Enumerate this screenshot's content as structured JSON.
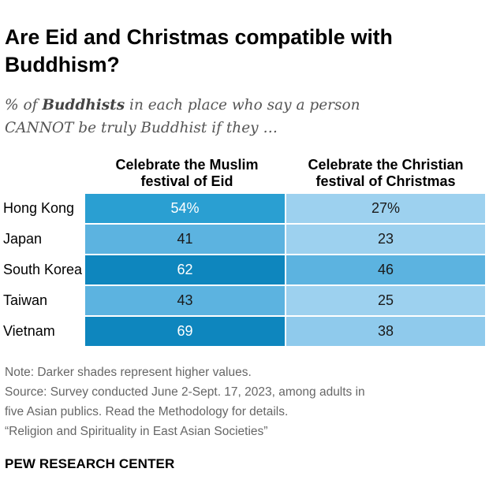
{
  "title_line1": "Are Eid and Christmas compatible with",
  "title_line2": "Buddhism?",
  "subtitle": {
    "pre": "% of ",
    "bold": "Buddhists",
    "post_line1": " in each place who say a person",
    "line2": "CANNOT be truly Buddhist if they …"
  },
  "chart_data": {
    "type": "table",
    "title": "Are Eid and Christmas compatible with Buddhism?",
    "subtitle": "% of Buddhists in each place who say a person CANNOT be truly Buddhist if they …",
    "columns": [
      {
        "line1": "Celebrate the Muslim",
        "line2": "festival of Eid"
      },
      {
        "line1": "Celebrate the Christian",
        "line2": "festival of Christmas"
      }
    ],
    "rows": [
      {
        "label": "Hong Kong",
        "values": [
          54,
          27
        ],
        "display": [
          "54%",
          "27%"
        ]
      },
      {
        "label": "Japan",
        "values": [
          41,
          23
        ],
        "display": [
          "41",
          "23"
        ]
      },
      {
        "label": "South Korea",
        "values": [
          62,
          46
        ],
        "display": [
          "62",
          "46"
        ]
      },
      {
        "label": "Taiwan",
        "values": [
          43,
          25
        ],
        "display": [
          "43",
          "25"
        ]
      },
      {
        "label": "Vietnam",
        "values": [
          69,
          38
        ],
        "display": [
          "69",
          "38"
        ]
      }
    ],
    "shading_note": "Darker shades represent higher values"
  },
  "colors": {
    "shade_highest": "#0e86be",
    "shade_high": "#2a9fd2",
    "shade_mid": "#5cb3e0",
    "shade_low": "#8fcaec",
    "shade_lowest": "#9dd1ef"
  },
  "notes": {
    "note": "Note: Darker shades represent higher values.",
    "source_line1": "Source: Survey conducted June 2-Sept. 17, 2023, among adults in",
    "source_line2": "five Asian publics. Read the Methodology for details.",
    "report": "“Religion and Spirituality in East Asian Societies”"
  },
  "footer": "PEW RESEARCH CENTER"
}
